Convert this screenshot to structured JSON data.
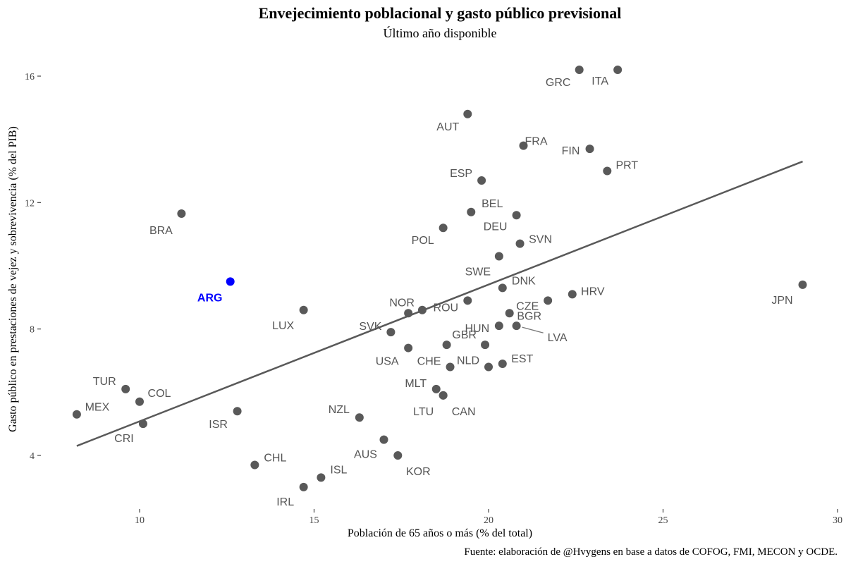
{
  "chart_data": {
    "type": "scatter",
    "title": "Envejecimiento poblacional y gasto público previsional",
    "subtitle": "Último año disponible",
    "xlabel": "Población de 65 años o más (% del total)",
    "ylabel": "Gasto público en prestaciones de vejez y sobrevivencia (% del PIB)",
    "caption": "Fuente: elaboración de @Hvygens en base a datos de COFOG, FMI, MECON y OCDE.",
    "xlim": [
      7.8,
      30
    ],
    "ylim": [
      2.4,
      16.7
    ],
    "xticks": [
      10,
      15,
      20,
      25,
      30
    ],
    "yticks": [
      4,
      8,
      12,
      16
    ],
    "grid": false,
    "colors": {
      "points": "#595959",
      "highlight": "#0000ff",
      "trend": "#595959"
    },
    "trendline": {
      "x": [
        8.2,
        29.0
      ],
      "y": [
        4.3,
        13.3
      ]
    },
    "points": [
      {
        "label": "GRC",
        "x": 22.6,
        "y": 16.2
      },
      {
        "label": "ITA",
        "x": 23.7,
        "y": 16.2
      },
      {
        "label": "AUT",
        "x": 19.4,
        "y": 14.8
      },
      {
        "label": "FRA",
        "x": 21.0,
        "y": 13.8
      },
      {
        "label": "FIN",
        "x": 22.9,
        "y": 13.7
      },
      {
        "label": "PRT",
        "x": 23.4,
        "y": 13.0
      },
      {
        "label": "ESP",
        "x": 19.8,
        "y": 12.7
      },
      {
        "label": "BEL",
        "x": 19.5,
        "y": 11.7
      },
      {
        "label": "DEU",
        "x": 20.8,
        "y": 11.6
      },
      {
        "label": "BRA",
        "x": 11.2,
        "y": 11.65
      },
      {
        "label": "POL",
        "x": 18.7,
        "y": 11.2
      },
      {
        "label": "SVN",
        "x": 20.9,
        "y": 10.7
      },
      {
        "label": "SWE",
        "x": 20.3,
        "y": 10.3
      },
      {
        "label": "ARG",
        "x": 12.6,
        "y": 9.5,
        "highlight": true
      },
      {
        "label": "DNK",
        "x": 20.4,
        "y": 9.3
      },
      {
        "label": "HRV",
        "x": 22.4,
        "y": 9.1
      },
      {
        "label": "JPN",
        "x": 29.0,
        "y": 9.4
      },
      {
        "label": "ROU",
        "x": 19.4,
        "y": 8.9
      },
      {
        "label": "CZE",
        "x": 21.7,
        "y": 8.9
      },
      {
        "label": "LUX",
        "x": 14.7,
        "y": 8.6
      },
      {
        "label": "NOR",
        "x": 17.7,
        "y": 8.5
      },
      {
        "label": "",
        "x": 18.1,
        "y": 8.6
      },
      {
        "label": "BGR",
        "x": 20.6,
        "y": 8.5
      },
      {
        "label": "HUN",
        "x": 20.3,
        "y": 8.1
      },
      {
        "label": "LVA",
        "x": 20.8,
        "y": 8.1
      },
      {
        "label": "SVK",
        "x": 17.2,
        "y": 7.9
      },
      {
        "label": "GBR",
        "x": 18.8,
        "y": 7.5
      },
      {
        "label": "",
        "x": 19.9,
        "y": 7.5
      },
      {
        "label": "USA",
        "x": 17.7,
        "y": 7.4
      },
      {
        "label": "EST",
        "x": 20.4,
        "y": 6.9
      },
      {
        "label": "CHE",
        "x": 18.9,
        "y": 6.8
      },
      {
        "label": "NLD",
        "x": 20.0,
        "y": 6.8
      },
      {
        "label": "TUR",
        "x": 9.6,
        "y": 6.1
      },
      {
        "label": "MLT",
        "x": 18.5,
        "y": 6.1
      },
      {
        "label": "LTU",
        "x": 18.7,
        "y": 5.9
      },
      {
        "label": "CAN",
        "x": 18.7,
        "y": 5.9
      },
      {
        "label": "MEX",
        "x": 8.2,
        "y": 5.3
      },
      {
        "label": "COL",
        "x": 10.0,
        "y": 5.7
      },
      {
        "label": "CRI",
        "x": 10.1,
        "y": 5.0
      },
      {
        "label": "ISR",
        "x": 12.8,
        "y": 5.4
      },
      {
        "label": "NZL",
        "x": 16.3,
        "y": 5.2
      },
      {
        "label": "AUS",
        "x": 17.0,
        "y": 4.5
      },
      {
        "label": "KOR",
        "x": 17.4,
        "y": 4.0
      },
      {
        "label": "CHL",
        "x": 13.3,
        "y": 3.7
      },
      {
        "label": "ISL",
        "x": 15.2,
        "y": 3.3
      },
      {
        "label": "IRL",
        "x": 14.7,
        "y": 3.0
      }
    ]
  }
}
